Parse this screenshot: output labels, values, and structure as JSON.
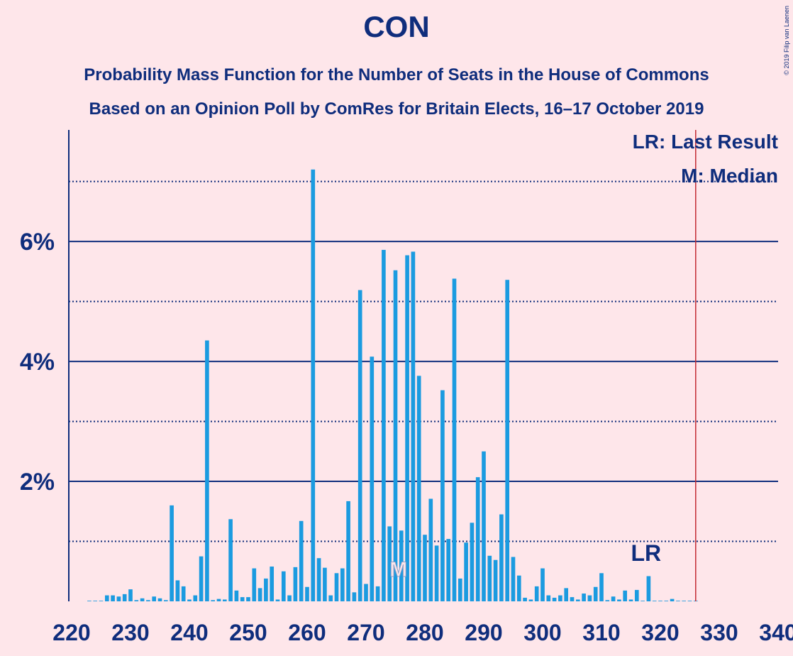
{
  "chart_data": {
    "type": "bar",
    "title": "CON",
    "subtitle": "Probability Mass Function for the Number of Seats in the House of Commons",
    "subtitle2": "Based on an Opinion Poll by ComRes for Britain Elects, 16–17 October 2019",
    "copyright": "© 2019 Filip van Laenen",
    "legend": [
      "LR: Last Result",
      "M: Median"
    ],
    "last_result": 326,
    "last_result_label": "LR",
    "median": 276,
    "median_label": "M",
    "color": "#1b9be0",
    "x": [
      220,
      221,
      222,
      223,
      224,
      225,
      226,
      227,
      228,
      229,
      230,
      231,
      232,
      233,
      234,
      235,
      236,
      237,
      238,
      239,
      240,
      241,
      242,
      243,
      244,
      245,
      246,
      247,
      248,
      249,
      250,
      251,
      252,
      253,
      254,
      255,
      256,
      257,
      258,
      259,
      260,
      261,
      262,
      263,
      264,
      265,
      266,
      267,
      268,
      269,
      270,
      271,
      272,
      273,
      274,
      275,
      276,
      277,
      278,
      279,
      280,
      281,
      282,
      283,
      284,
      285,
      286,
      287,
      288,
      289,
      290,
      291,
      292,
      293,
      294,
      295,
      296,
      297,
      298,
      299,
      300,
      301,
      302,
      303,
      304,
      305,
      306,
      307,
      308,
      309,
      310,
      311,
      312,
      313,
      314,
      315,
      316,
      317,
      318,
      319,
      320,
      321,
      322,
      323,
      324,
      325,
      326,
      327,
      328,
      329,
      330,
      331,
      332,
      333,
      334,
      335,
      336,
      337,
      338,
      339,
      340
    ],
    "values": [
      0,
      0,
      0,
      0.01,
      0.01,
      0.01,
      0.1,
      0.1,
      0.08,
      0.12,
      0.2,
      0.02,
      0.05,
      0.02,
      0.08,
      0.05,
      0.02,
      1.6,
      0.35,
      0.25,
      0.03,
      0.1,
      0.75,
      4.35,
      0.02,
      0.04,
      0.03,
      1.37,
      0.18,
      0.07,
      0.07,
      0.55,
      0.22,
      0.38,
      0.58,
      0.03,
      0.5,
      0.1,
      0.57,
      1.34,
      0.24,
      7.2,
      0.72,
      0.56,
      0.1,
      0.47,
      0.55,
      1.67,
      0.15,
      5.19,
      0.29,
      4.08,
      0.25,
      5.86,
      1.25,
      5.52,
      1.18,
      5.77,
      5.83,
      3.76,
      1.11,
      1.71,
      0.93,
      3.52,
      1.04,
      5.38,
      0.38,
      0.98,
      1.31,
      2.07,
      2.5,
      0.76,
      0.69,
      1.45,
      5.36,
      0.74,
      0.43,
      0.06,
      0.03,
      0.25,
      0.55,
      0.1,
      0.06,
      0.1,
      0.22,
      0.07,
      0.03,
      0.13,
      0.1,
      0.24,
      0.47,
      0.02,
      0.08,
      0.03,
      0.18,
      0.03,
      0.19,
      0.01,
      0.42,
      0.01,
      0.01,
      0.01,
      0.04,
      0.01,
      0.01,
      0.01,
      0.01,
      0,
      0,
      0,
      0,
      0,
      0,
      0,
      0,
      0,
      0,
      0,
      0,
      0,
      0
    ],
    "xlim": [
      220,
      340
    ],
    "xticks": [
      220,
      230,
      240,
      250,
      260,
      270,
      280,
      290,
      300,
      310,
      320,
      330,
      340
    ],
    "ylim": [
      0,
      7.86
    ],
    "yticks": [
      {
        "value": 2,
        "label": "2%"
      },
      {
        "value": 4,
        "label": "4%"
      },
      {
        "value": 6,
        "label": "6%"
      }
    ],
    "minor_grid": [
      1,
      3,
      5,
      7
    ],
    "grid": true
  }
}
